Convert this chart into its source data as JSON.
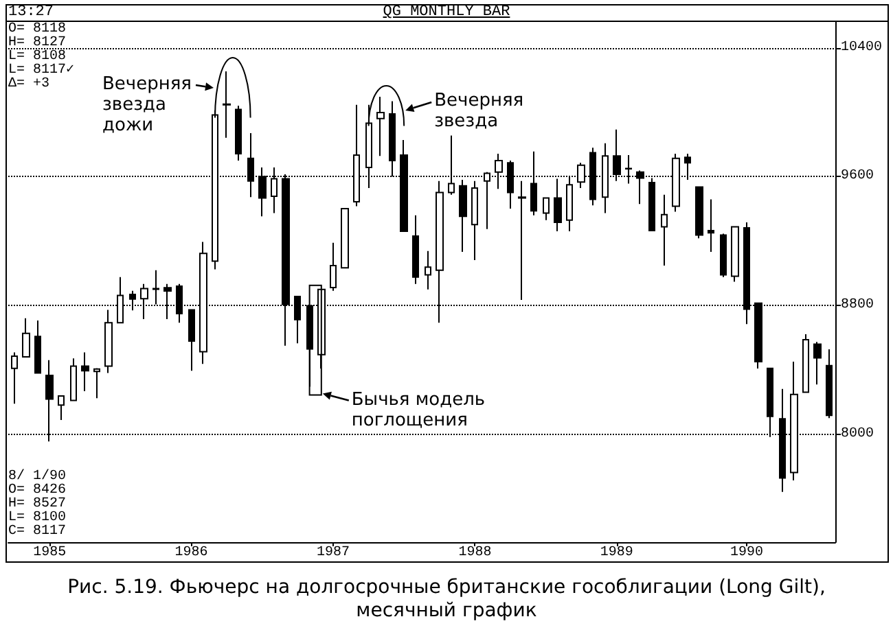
{
  "chart_data": {
    "type": "candlestick",
    "title": "QG MONTHLY BAR",
    "categories": [
      null,
      null,
      null,
      "1985",
      null,
      null,
      null,
      null,
      null,
      null,
      null,
      null,
      null,
      null,
      null,
      "1986",
      null,
      null,
      null,
      null,
      null,
      null,
      null,
      null,
      null,
      null,
      null,
      "1987",
      null,
      null,
      null,
      null,
      null,
      null,
      null,
      null,
      null,
      null,
      null,
      "1988",
      null,
      null,
      null,
      null,
      null,
      null,
      null,
      null,
      null,
      null,
      null,
      "1989",
      null,
      null,
      null,
      null,
      null,
      null,
      null,
      null,
      null,
      null,
      "1990",
      null,
      null,
      null,
      null,
      null,
      null,
      null
    ],
    "ohlc": [
      [
        8409,
        8508,
        8190,
        8485
      ],
      [
        8480,
        8720,
        8480,
        8627
      ],
      [
        8607,
        8706,
        8380,
        8380
      ],
      [
        8366,
        8460,
        7955,
        8218
      ],
      [
        8181,
        8238,
        8088,
        8238
      ],
      [
        8210,
        8471,
        8210,
        8423
      ],
      [
        8423,
        8508,
        8267,
        8394
      ],
      [
        8390,
        8410,
        8224,
        8405
      ],
      [
        8423,
        8772,
        8380,
        8692
      ],
      [
        8692,
        8976,
        8692,
        8862
      ],
      [
        8868,
        8891,
        8769,
        8840
      ],
      [
        8842,
        8933,
        8715,
        8905
      ],
      [
        8900,
        9018,
        8806,
        8905
      ],
      [
        8910,
        8933,
        8715,
        8890
      ],
      [
        8919,
        8933,
        8692,
        8749
      ],
      [
        8772,
        8772,
        8394,
        8579
      ],
      [
        8513,
        9194,
        8437,
        9123
      ],
      [
        9075,
        10011,
        9024,
        9983
      ],
      [
        10050,
        10253,
        9841,
        10045
      ],
      [
        10017,
        10040,
        9699,
        9742
      ],
      [
        9713,
        9870,
        9472,
        9572
      ],
      [
        9600,
        9657,
        9353,
        9467
      ],
      [
        9478,
        9657,
        9373,
        9586
      ],
      [
        9586,
        9614,
        8550,
        8806
      ],
      [
        8856,
        8856,
        8565,
        8712
      ],
      [
        8797,
        8797,
        8295,
        8530
      ],
      [
        8494,
        8899,
        8408,
        8899
      ],
      [
        8911,
        9189,
        8891,
        9047
      ],
      [
        9033,
        9401,
        9033,
        9401
      ],
      [
        9444,
        10045,
        9416,
        9733
      ],
      [
        9657,
        10045,
        9529,
        9932
      ],
      [
        9960,
        10096,
        9728,
        9997
      ],
      [
        9989,
        10068,
        9600,
        9699
      ],
      [
        9733,
        9827,
        9260,
        9260
      ],
      [
        9231,
        9359,
        8933,
        8976
      ],
      [
        8990,
        9138,
        8899,
        9038
      ],
      [
        9018,
        9572,
        8692,
        9501
      ],
      [
        9501,
        9855,
        9487,
        9557
      ],
      [
        9543,
        9580,
        9132,
        9353
      ],
      [
        9302,
        9572,
        9081,
        9529
      ],
      [
        9572,
        9628,
        9274,
        9620
      ],
      [
        9628,
        9742,
        9523,
        9699
      ],
      [
        9685,
        9699,
        9401,
        9501
      ],
      [
        9472,
        9572,
        8834,
        9467
      ],
      [
        9557,
        9756,
        9359,
        9387
      ],
      [
        9373,
        9467,
        9330,
        9467
      ],
      [
        9467,
        9586,
        9260,
        9316
      ],
      [
        9330,
        9600,
        9260,
        9549
      ],
      [
        9566,
        9685,
        9529,
        9671
      ],
      [
        9748,
        9779,
        9421,
        9458
      ],
      [
        9472,
        9807,
        9373,
        9728
      ],
      [
        9728,
        9892,
        9572,
        9614
      ],
      [
        9650,
        9733,
        9557,
        9648
      ],
      [
        9628,
        9637,
        9430,
        9591
      ],
      [
        9563,
        9591,
        9265,
        9265
      ],
      [
        9288,
        9487,
        9047,
        9364
      ],
      [
        9416,
        9742,
        9382,
        9713
      ],
      [
        9719,
        9742,
        9580,
        9685
      ],
      [
        9535,
        9535,
        9217,
        9237
      ],
      [
        9265,
        9458,
        9132,
        9251
      ],
      [
        9237,
        9245,
        8976,
        8990
      ],
      [
        8981,
        9288,
        8947,
        9288
      ],
      [
        9282,
        9316,
        8684,
        8777
      ],
      [
        8814,
        8814,
        8408,
        8451
      ],
      [
        8409,
        8409,
        7983,
        8111
      ],
      [
        8096,
        8281,
        7642,
        7728
      ],
      [
        7762,
        8451,
        7713,
        8247
      ],
      [
        8261,
        8621,
        8261,
        8587
      ],
      [
        8559,
        8573,
        8309,
        8474
      ],
      [
        8426,
        8527,
        8100,
        8117
      ]
    ],
    "color": "#000000",
    "ylim": [
      7330,
      10560
    ],
    "yticks": [
      8000,
      8800,
      9600,
      10400
    ],
    "grid": "y",
    "annotations": [
      "13:27",
      "O= 8118\nH= 8127\nL= 8108\nL= 8117✓\nΔ= +3",
      "8/ 1/90\nO= 8426\nH= 8527\nL= 8100\nC= 8117",
      "Вечерняя звезда дожи",
      "Вечерняя звезда",
      "Бычья модель поглощения",
      "Рис. 5.19. Фьючерс на долгосрочные британские гособлигации (Long Gilt), месячный график"
    ]
  }
}
